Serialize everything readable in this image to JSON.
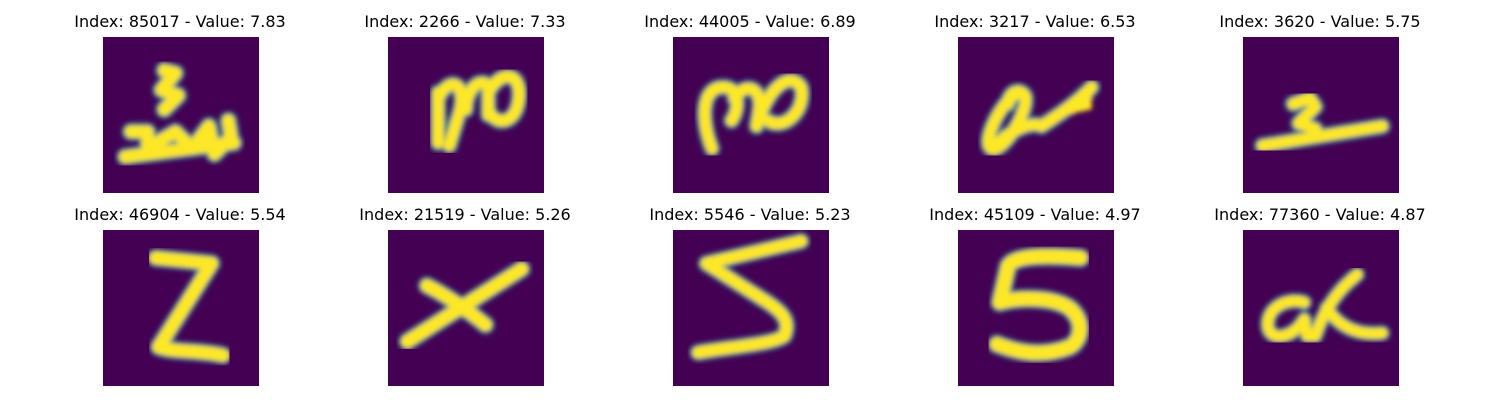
{
  "colors": {
    "background": "#440154",
    "mid": "#2a788e",
    "edge": "#21918c",
    "ink": "#fde725"
  },
  "panels": [
    {
      "title": "Index: 85017 - Value: 7.83"
    },
    {
      "title": "Index: 2266 - Value: 7.33"
    },
    {
      "title": "Index: 44005 - Value: 6.89"
    },
    {
      "title": "Index: 3217 - Value: 6.53"
    },
    {
      "title": "Index: 3620 - Value: 5.75"
    },
    {
      "title": "Index: 46904 - Value: 5.54"
    },
    {
      "title": "Index: 21519 - Value: 5.26"
    },
    {
      "title": "Index: 5546 - Value: 5.23"
    },
    {
      "title": "Index: 45109 - Value: 4.97"
    },
    {
      "title": "Index: 77360 - Value: 4.87"
    }
  ]
}
